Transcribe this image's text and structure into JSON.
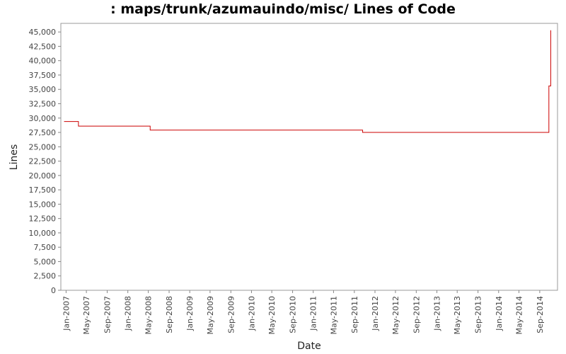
{
  "chart_data": {
    "type": "line",
    "title": ": maps/trunk/azumauindo/misc/ Lines of Code",
    "xlabel": "Date",
    "ylabel": "Lines",
    "ylim": [
      0,
      46500
    ],
    "xlim": [
      "2006-12-01",
      "2014-12-15"
    ],
    "y_ticks": [
      0,
      2500,
      5000,
      7500,
      10000,
      12500,
      15000,
      17500,
      20000,
      22500,
      25000,
      27500,
      30000,
      32500,
      35000,
      37500,
      40000,
      42500,
      45000
    ],
    "y_tick_labels": [
      "0",
      "2,500",
      "5,000",
      "7,500",
      "10,000",
      "12,500",
      "15,000",
      "17,500",
      "20,000",
      "22,500",
      "25,000",
      "27,500",
      "30,000",
      "32,500",
      "35,000",
      "37,500",
      "40,000",
      "42,500",
      "45,000"
    ],
    "x_ticks": [
      "2007-01-01",
      "2007-05-01",
      "2007-09-01",
      "2008-01-01",
      "2008-05-01",
      "2008-09-01",
      "2009-01-01",
      "2009-05-01",
      "2009-09-01",
      "2010-01-01",
      "2010-05-01",
      "2010-09-01",
      "2011-01-01",
      "2011-05-01",
      "2011-09-01",
      "2012-01-01",
      "2012-05-01",
      "2012-09-01",
      "2013-01-01",
      "2013-05-01",
      "2013-09-01",
      "2014-01-01",
      "2014-05-01",
      "2014-09-01"
    ],
    "x_tick_labels": [
      "Jan-2007",
      "May-2007",
      "Sep-2007",
      "Jan-2008",
      "May-2008",
      "Sep-2008",
      "Jan-2009",
      "May-2009",
      "Sep-2009",
      "Jan-2010",
      "May-2010",
      "Sep-2010",
      "Jan-2011",
      "May-2011",
      "Sep-2011",
      "Jan-2012",
      "May-2012",
      "Sep-2012",
      "Jan-2013",
      "May-2013",
      "Sep-2013",
      "Jan-2014",
      "May-2014",
      "Sep-2014"
    ],
    "step": true,
    "series": [
      {
        "color": "#cc0000",
        "points": [
          {
            "x": "2006-12-20",
            "y": 29400
          },
          {
            "x": "2007-03-15",
            "y": 28600
          },
          {
            "x": "2008-05-12",
            "y": 27900
          },
          {
            "x": "2011-10-20",
            "y": 27500
          },
          {
            "x": "2014-10-25",
            "y": 35600
          },
          {
            "x": "2014-11-05",
            "y": 45300
          }
        ]
      }
    ],
    "grid": false
  }
}
